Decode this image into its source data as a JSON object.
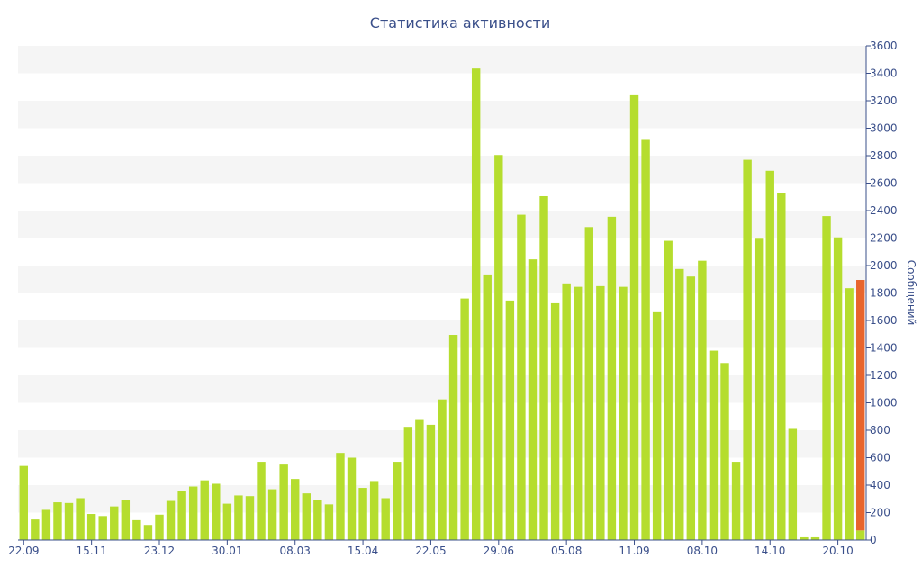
{
  "chart_data": {
    "type": "bar",
    "title": "Статистика активности",
    "ylabel": "Сообщений",
    "ylim": [
      0,
      3600
    ],
    "ytick_step": 200,
    "x_tick_labels": [
      "22.09",
      "15.11",
      "23.12",
      "30.01",
      "08.03",
      "15.04",
      "22.05",
      "29.06",
      "05.08",
      "11.09",
      "08.10",
      "14.10",
      "20.10"
    ],
    "x_tick_positions": [
      0,
      6,
      12,
      18,
      24,
      30,
      36,
      42,
      48,
      54,
      60,
      66,
      72
    ],
    "values": [
      540,
      150,
      220,
      275,
      270,
      305,
      190,
      175,
      245,
      290,
      145,
      110,
      185,
      285,
      355,
      390,
      435,
      410,
      265,
      325,
      320,
      570,
      370,
      550,
      445,
      340,
      295,
      260,
      635,
      600,
      380,
      430,
      305,
      570,
      825,
      875,
      840,
      1025,
      1495,
      1760,
      3435,
      1935,
      2805,
      1745,
      2370,
      2045,
      2505,
      1725,
      1870,
      1845,
      2280,
      1850,
      2355,
      1845,
      3240,
      2915,
      1660,
      2180,
      1975,
      1920,
      2035,
      1380,
      1290,
      570,
      2770,
      2195,
      2690,
      2525,
      810,
      20,
      20,
      2360,
      2205,
      1835,
      1895
    ],
    "current_period": {
      "total": 1895,
      "base": 70,
      "base_color": "#b5dd2e",
      "color": "#e8652c"
    },
    "bar_color": "#b5dd2e",
    "band_color": "#f5f5f5",
    "text_color": "#3a4f8a",
    "grid": true
  }
}
